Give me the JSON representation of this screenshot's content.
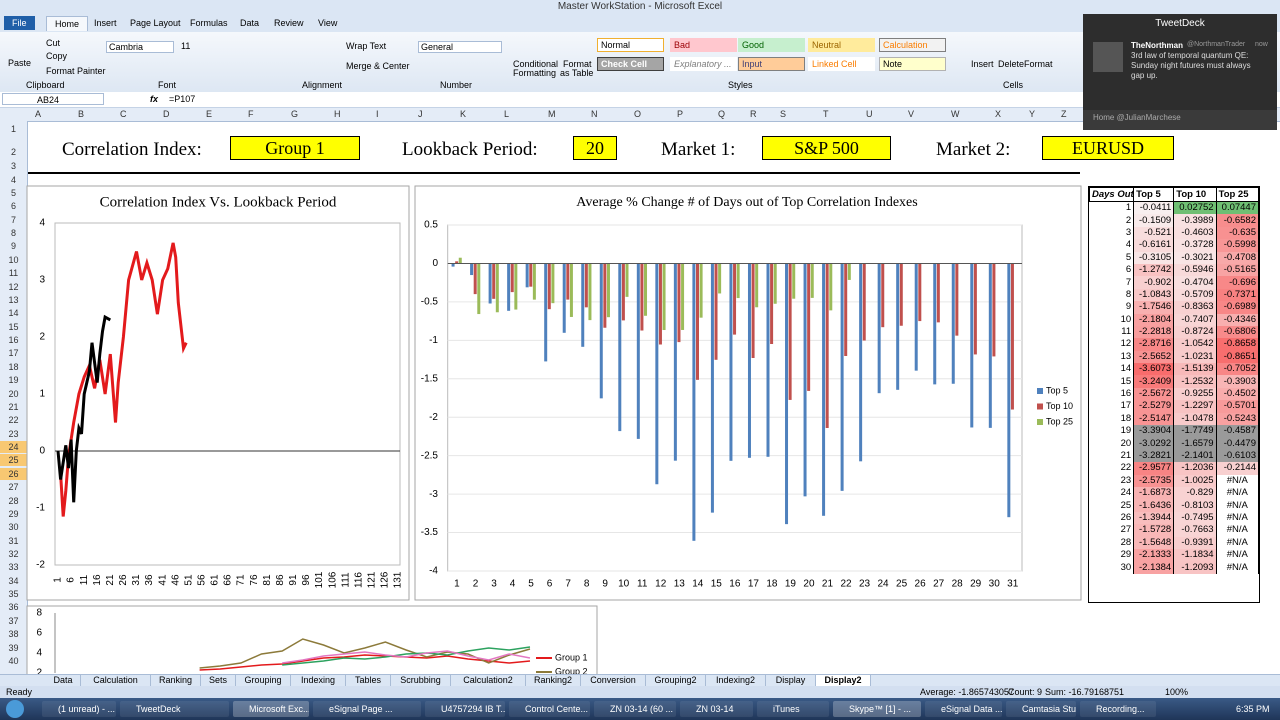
{
  "window": {
    "title": "Master WorkStation - Microsoft Excel"
  },
  "ribbon": {
    "tabs": [
      "File",
      "Home",
      "Insert",
      "Page Layout",
      "Formulas",
      "Data",
      "Review",
      "View"
    ],
    "items": [
      "Paste",
      "Cut",
      "Copy",
      "Format Painter",
      "Clipboard",
      "Cambria",
      "11",
      "Font",
      "Wrap Text",
      "Merge & Center",
      "Alignment",
      "General",
      "Number",
      "Conditional",
      "Formatting",
      "Format",
      "as Table",
      "Styles",
      "Insert",
      "Delete",
      "Format",
      "Cells"
    ],
    "styles": [
      {
        "name": "Normal",
        "fill": "#ffffff",
        "color": "#000000",
        "border": "#f0b030"
      },
      {
        "name": "Bad",
        "fill": "#ffc7ce",
        "color": "#9c0006",
        "border": "#ffc7ce"
      },
      {
        "name": "Good",
        "fill": "#c6efce",
        "color": "#006100",
        "border": "#c6efce"
      },
      {
        "name": "Neutral",
        "fill": "#ffeb9c",
        "color": "#9c6500",
        "border": "#ffeb9c"
      },
      {
        "name": "Calculation",
        "fill": "#f2f2f2",
        "color": "#fa7d00",
        "border": "#7f7f7f"
      },
      {
        "name": "Check Cell",
        "fill": "#a5a5a5",
        "color": "#ffffff",
        "border": "#3f3f3f"
      },
      {
        "name": "Explanatory ...",
        "fill": "#ffffff",
        "color": "#7f7f7f",
        "border": "#ffffff"
      },
      {
        "name": "Input",
        "fill": "#ffcc99",
        "color": "#3f3f76",
        "border": "#7f7f7f"
      },
      {
        "name": "Linked Cell",
        "fill": "#ffffff",
        "color": "#fa7d00",
        "border": "#ffffff"
      },
      {
        "name": "Note",
        "fill": "#ffffcc",
        "color": "#000000",
        "border": "#b2b2b2"
      }
    ]
  },
  "formula_bar": {
    "name_box": "AB24",
    "fx": "fx",
    "formula": "=P107"
  },
  "columns": [
    "A",
    "B",
    "C",
    "D",
    "E",
    "F",
    "G",
    "H",
    "I",
    "J",
    "K",
    "L",
    "M",
    "N",
    "O",
    "P",
    "Q",
    "R",
    "S",
    "T",
    "U",
    "V",
    "W",
    "X",
    "Y",
    "Z"
  ],
  "rows": [
    1,
    2,
    3,
    4,
    5,
    6,
    7,
    8,
    9,
    10,
    11,
    12,
    13,
    14,
    15,
    16,
    17,
    18,
    19,
    20,
    21,
    22,
    23,
    24,
    25,
    26,
    27,
    28,
    29,
    30,
    31,
    32,
    33,
    34,
    35,
    36,
    37,
    38,
    39,
    40
  ],
  "header": {
    "labels": [
      "Correlation Index:",
      "Lookback Period:",
      "Market 1:",
      "Market 2:"
    ],
    "values": [
      "Group 1",
      "20",
      "S&P 500",
      "EURUSD"
    ]
  },
  "chart_data": [
    {
      "type": "line",
      "title": "Correlation Index Vs. Lookback Period",
      "xlim": [
        1,
        131
      ],
      "xticks": [
        1,
        6,
        11,
        16,
        21,
        26,
        31,
        36,
        41,
        46,
        51,
        56,
        61,
        66,
        71,
        76,
        81,
        86,
        91,
        96,
        101,
        106,
        111,
        116,
        121,
        126,
        131
      ],
      "ylim": [
        -2,
        4
      ],
      "yticks": [
        4,
        3,
        2,
        1,
        0,
        -1,
        -2
      ],
      "series": [
        {
          "color": "#e31a1c",
          "x": [
            2,
            3,
            4,
            5,
            7,
            9,
            11,
            13,
            15,
            17,
            19,
            21,
            23,
            24,
            26,
            28,
            31,
            33,
            35,
            37,
            39,
            41,
            43,
            45,
            46,
            47,
            49,
            50
          ],
          "values": [
            -0.4,
            -1.15,
            -0.7,
            -0.1,
            0.5,
            1.0,
            1.3,
            1.5,
            1.1,
            1.6,
            1.0,
            1.7,
            0.5,
            1.2,
            2.0,
            3.0,
            3.5,
            3.0,
            3.3,
            3.0,
            2.4,
            3.0,
            3.2,
            3.65,
            3.4,
            2.6,
            1.8,
            1.9
          ]
        },
        {
          "color": "#000000",
          "x": [
            1,
            2,
            4,
            5,
            6,
            7,
            8,
            9,
            10,
            11,
            13,
            14,
            16,
            17,
            18,
            19,
            21
          ],
          "values": [
            0,
            -0.5,
            0.1,
            -0.3,
            0.2,
            -0.9,
            0,
            0.4,
            0.3,
            1.0,
            1.4,
            1.9,
            1.2,
            1.7,
            2.1,
            2.35,
            2.3
          ]
        }
      ]
    },
    {
      "type": "bar",
      "title": "Average % Change # of Days out of Top Correlation Indexes",
      "categories": [
        1,
        2,
        3,
        4,
        5,
        6,
        7,
        8,
        9,
        10,
        11,
        12,
        13,
        14,
        15,
        16,
        17,
        18,
        19,
        20,
        21,
        22,
        23,
        24,
        25,
        26,
        27,
        28,
        29,
        30,
        31
      ],
      "ylim": [
        -4,
        0.5
      ],
      "yticks": [
        0.5,
        0,
        -0.5,
        -1,
        -1.5,
        -2,
        -2.5,
        -3,
        -3.5,
        -4
      ],
      "grid": true,
      "legend": "right",
      "series": [
        {
          "name": "Top 5",
          "color": "#4f81bd",
          "values": [
            -0.0411,
            -0.1509,
            -0.521,
            -0.6161,
            -0.3105,
            -1.2742,
            -0.902,
            -1.0843,
            -1.7546,
            -2.1804,
            -2.2818,
            -2.8716,
            -2.5652,
            -3.6073,
            -3.2409,
            -2.5672,
            -2.5279,
            -2.5147,
            -3.3904,
            -3.0292,
            -3.2821,
            -2.9577,
            -2.5735,
            -1.6873,
            -1.6436,
            -1.3944,
            -1.5728,
            -1.5648,
            -2.1333,
            -2.1384,
            -3.3
          ]
        },
        {
          "name": "Top 10",
          "color": "#c0504d",
          "values": [
            0.02752,
            -0.3989,
            -0.4603,
            -0.3728,
            -0.3021,
            -0.5946,
            -0.4704,
            -0.5709,
            -0.8363,
            -0.7407,
            -0.8724,
            -1.0542,
            -1.0231,
            -1.5139,
            -1.2532,
            -0.9255,
            -1.2297,
            -1.0478,
            -1.7749,
            -1.6579,
            -2.1401,
            -1.2036,
            -1.0025,
            -0.829,
            -0.8103,
            -0.7495,
            -0.7663,
            -0.9391,
            -1.1834,
            -1.2093,
            -1.9
          ]
        },
        {
          "name": "Top 25",
          "color": "#9bbb59",
          "values": [
            0.07447,
            -0.6582,
            -0.635,
            -0.5998,
            -0.4708,
            -0.5165,
            -0.696,
            -0.7371,
            -0.6989,
            -0.4346,
            -0.6806,
            -0.8658,
            -0.8651,
            -0.7052,
            -0.3903,
            -0.4502,
            -0.5701,
            -0.5243,
            -0.4587,
            -0.4479,
            -0.6103,
            -0.2144,
            null,
            null,
            null,
            null,
            null,
            null,
            null,
            null,
            null
          ]
        }
      ]
    },
    {
      "type": "line",
      "ylim": [
        2,
        8
      ],
      "yticks": [
        8,
        6,
        4,
        2
      ],
      "series": [
        {
          "name": "Group 1",
          "color": "#e31a1c",
          "values": [
            null,
            null,
            null,
            null,
            null,
            null,
            null,
            2.3,
            2.4,
            2.6,
            2.8,
            2.9,
            3.2,
            3.5,
            3.6,
            3.8,
            3.7,
            3.6,
            3.5,
            3.7,
            3.4,
            3.2,
            3.0,
            3.2
          ]
        },
        {
          "name": "Group 2",
          "color": "#8c7a3a",
          "values": [
            null,
            null,
            null,
            null,
            null,
            null,
            null,
            2.5,
            2.7,
            3.0,
            3.9,
            4.2,
            5.4,
            4.8,
            4.0,
            4.5,
            5.1,
            4.3,
            3.6,
            4.1,
            3.9,
            3.0,
            3.8,
            4.4
          ]
        },
        {
          "color": "#2ca25f",
          "values": [
            null,
            null,
            null,
            null,
            null,
            null,
            null,
            null,
            null,
            null,
            null,
            2.8,
            3.0,
            3.2,
            3.5,
            3.4,
            3.6,
            3.9,
            4.0,
            3.8,
            4.2,
            4.5,
            4.3,
            4.6
          ]
        },
        {
          "color": "#e377c2",
          "values": [
            null,
            null,
            null,
            null,
            null,
            null,
            null,
            null,
            null,
            null,
            null,
            3.0,
            3.3,
            3.7,
            3.9,
            4.1,
            3.8,
            3.6,
            4.0,
            4.2,
            3.7,
            3.3,
            3.9,
            3.5
          ]
        }
      ]
    }
  ],
  "table": {
    "header": [
      "Days Out",
      "Top 5",
      "Top 10",
      "Top 25"
    ],
    "rows": [
      [
        "1",
        "-0.0411",
        "0.02752",
        "0.07447"
      ],
      [
        "2",
        "-0.1509",
        "-0.3989",
        "-0.6582"
      ],
      [
        "3",
        "-0.521",
        "-0.4603",
        "-0.635"
      ],
      [
        "4",
        "-0.6161",
        "-0.3728",
        "-0.5998"
      ],
      [
        "5",
        "-0.3105",
        "-0.3021",
        "-0.4708"
      ],
      [
        "6",
        "-1.2742",
        "-0.5946",
        "-0.5165"
      ],
      [
        "7",
        "-0.902",
        "-0.4704",
        "-0.696"
      ],
      [
        "8",
        "-1.0843",
        "-0.5709",
        "-0.7371"
      ],
      [
        "9",
        "-1.7546",
        "-0.8363",
        "-0.6989"
      ],
      [
        "10",
        "-2.1804",
        "-0.7407",
        "-0.4346"
      ],
      [
        "11",
        "-2.2818",
        "-0.8724",
        "-0.6806"
      ],
      [
        "12",
        "-2.8716",
        "-1.0542",
        "-0.8658"
      ],
      [
        "13",
        "-2.5652",
        "-1.0231",
        "-0.8651"
      ],
      [
        "14",
        "-3.6073",
        "-1.5139",
        "-0.7052"
      ],
      [
        "15",
        "-3.2409",
        "-1.2532",
        "-0.3903"
      ],
      [
        "16",
        "-2.5672",
        "-0.9255",
        "-0.4502"
      ],
      [
        "17",
        "-2.5279",
        "-1.2297",
        "-0.5701"
      ],
      [
        "18",
        "-2.5147",
        "-1.0478",
        "-0.5243"
      ],
      [
        "19",
        "-3.3904",
        "-1.7749",
        "-0.4587"
      ],
      [
        "20",
        "-3.0292",
        "-1.6579",
        "-0.4479"
      ],
      [
        "21",
        "-3.2821",
        "-2.1401",
        "-0.6103"
      ],
      [
        "22",
        "-2.9577",
        "-1.2036",
        "-0.2144"
      ],
      [
        "23",
        "-2.5735",
        "-1.0025",
        "#N/A"
      ],
      [
        "24",
        "-1.6873",
        "-0.829",
        "#N/A"
      ],
      [
        "25",
        "-1.6436",
        "-0.8103",
        "#N/A"
      ],
      [
        "26",
        "-1.3944",
        "-0.7495",
        "#N/A"
      ],
      [
        "27",
        "-1.5728",
        "-0.7663",
        "#N/A"
      ],
      [
        "28",
        "-1.5648",
        "-0.9391",
        "#N/A"
      ],
      [
        "29",
        "-2.1333",
        "-1.1834",
        "#N/A"
      ],
      [
        "30",
        "-2.1384",
        "-1.2093",
        "#N/A"
      ]
    ]
  },
  "sheet_tabs": {
    "tabs": [
      "Data",
      "Calculation",
      "Ranking",
      "Sets",
      "Grouping",
      "Indexing",
      "Tables",
      "Scrubbing",
      "Calculation2",
      "Ranking2",
      "Conversion",
      "Grouping2",
      "Indexing2",
      "Display",
      "Display2"
    ],
    "active": "Display2"
  },
  "status_bar": {
    "ready": "Ready",
    "average": "Average: -1.865743057",
    "count": "Count: 9",
    "sum": "Sum: -16.79168751",
    "zoom": "100%"
  },
  "tweetdeck": {
    "title": "TweetDeck",
    "user": "TheNorthman",
    "handle": "@NorthmanTrader",
    "time": "now",
    "text": "3rd law of temporal quantum QE: Sunday night futures must always gap up.",
    "footer": "Home @JulianMarchese"
  },
  "taskbar": {
    "items": [
      "(1 unread) - ...",
      "TweetDeck",
      "Microsoft Exc...",
      "eSignal Page ...",
      "U4757294 IB T...",
      "Control Cente...",
      "ZN 03-14 (60 ...",
      "ZN 03-14",
      "iTunes",
      "Skype™ [1] - ...",
      "eSignal Data ...",
      "Camtasia Stu...",
      "Recording..."
    ],
    "clock": "6:35 PM"
  }
}
